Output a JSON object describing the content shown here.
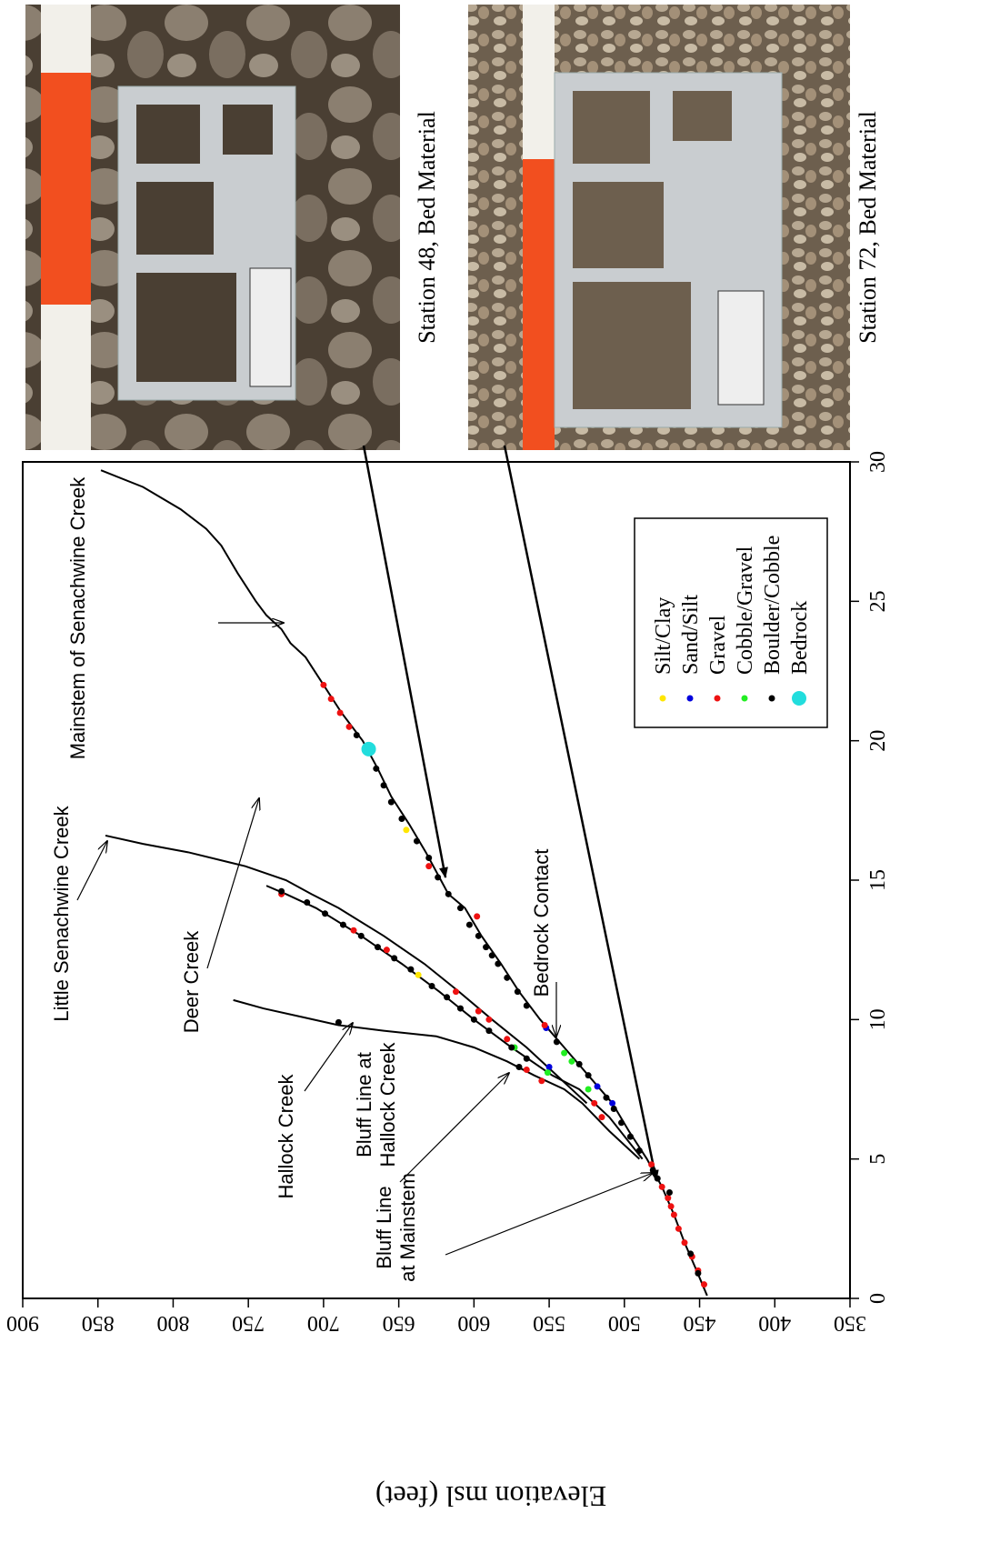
{
  "chart_data": {
    "type": "line",
    "y_label": "Elevation msl (feet)",
    "xlim": [
      0,
      30
    ],
    "ylim": [
      350,
      900
    ],
    "xticks": [
      0,
      5,
      10,
      15,
      20,
      25,
      30
    ],
    "yticks": [
      350,
      400,
      450,
      500,
      550,
      600,
      650,
      700,
      750,
      800,
      850,
      900
    ],
    "legend_position": "lower right",
    "series": [
      {
        "type": "line",
        "color": "#000000",
        "x": [
          0.1,
          1,
          2,
          3,
          4,
          4.5,
          5,
          6,
          7,
          8,
          9,
          10,
          11,
          12,
          13,
          14,
          14.5,
          15,
          16,
          17,
          18,
          19,
          20,
          21,
          22,
          23,
          23.5,
          24,
          24.5,
          25,
          26,
          27,
          27.6,
          28.3,
          29.1,
          29.7
        ],
        "values": [
          445,
          452,
          460,
          467,
          475,
          480,
          485,
          497,
          508,
          524,
          540,
          556,
          570,
          582,
          595,
          606,
          617,
          622,
          632,
          643,
          655,
          664,
          674,
          688,
          700,
          712,
          722,
          728,
          738,
          745,
          757,
          768,
          778,
          795,
          820,
          848
        ]
      },
      {
        "type": "line",
        "color": "#000000",
        "x": [
          7,
          8,
          9,
          10,
          11,
          12,
          13,
          14,
          14.5,
          15,
          15.5,
          16,
          16.3,
          16.6
        ],
        "values": [
          525,
          545,
          565,
          588,
          610,
          633,
          660,
          690,
          708,
          725,
          752,
          790,
          820,
          845
        ]
      },
      {
        "type": "line",
        "color": "#000000",
        "x": [
          5,
          6.5,
          7.5,
          8,
          9,
          10,
          11,
          12,
          13,
          14,
          14.5,
          14.8
        ],
        "values": [
          488,
          510,
          530,
          548,
          575,
          600,
          623,
          648,
          675,
          705,
          725,
          738
        ]
      },
      {
        "type": "line",
        "color": "#000000",
        "x": [
          5,
          6,
          7,
          7.5,
          8,
          8.5,
          9,
          9.4,
          9.6,
          9.8,
          10.1,
          10.4,
          10.7
        ],
        "values": [
          490,
          510,
          528,
          540,
          560,
          578,
          600,
          625,
          660,
          690,
          715,
          740,
          760
        ]
      },
      {
        "type": "scatter",
        "name": "Silt/Clay",
        "color": "#ffe600",
        "marker_size": 3.5,
        "x": [
          11.6,
          16.8
        ],
        "values": [
          637,
          645
        ]
      },
      {
        "type": "scatter",
        "name": "Sand/Silt",
        "color": "#0000dd",
        "marker_size": 3.5,
        "x": [
          7.0,
          7.6,
          8.3,
          9.7
        ],
        "values": [
          508,
          518,
          550,
          552
        ]
      },
      {
        "type": "scatter",
        "name": "Gravel",
        "color": "#ee1111",
        "marker_size": 3.5,
        "x": [
          0.5,
          1.0,
          1.5,
          2.0,
          2.5,
          3.0,
          3.3,
          3.6,
          4.0,
          4.8,
          6.5,
          7.0,
          7.8,
          8.2,
          9.3,
          9.8,
          10.0,
          10.3,
          11.0,
          12.5,
          13.2,
          13.7,
          14.5,
          15.5,
          20.5,
          21.0,
          21.5,
          22.0
        ],
        "values": [
          447,
          451,
          455,
          460,
          464,
          467,
          469,
          471,
          475,
          482,
          515,
          520,
          555,
          565,
          578,
          553,
          590,
          597,
          612,
          658,
          680,
          598,
          728,
          630,
          683,
          689,
          695,
          700
        ]
      },
      {
        "type": "scatter",
        "name": "Cobble/Gravel",
        "color": "#22ee22",
        "marker_size": 3.5,
        "x": [
          7.5,
          8.1,
          8.5,
          8.8,
          9.0
        ],
        "values": [
          524,
          551,
          535,
          540,
          573
        ]
      },
      {
        "type": "scatter",
        "name": "Boulder/Cobble",
        "color": "#000000",
        "marker_size": 3.5,
        "x": [
          0.9,
          1.6,
          3.8,
          4.3,
          4.6,
          5.3,
          5.8,
          6.3,
          6.8,
          7.2,
          8.0,
          8.4,
          9.2,
          10.5,
          11.0,
          11.5,
          12.0,
          12.3,
          12.6,
          13.0,
          13.4,
          14.0,
          14.5,
          15.1,
          15.8,
          16.4,
          17.2,
          17.8,
          18.4,
          19.0,
          20.2,
          8.6,
          9.0,
          9.6,
          10.0,
          10.4,
          10.8,
          11.2,
          11.8,
          12.2,
          12.6,
          13.0,
          13.4,
          13.8,
          14.2,
          14.6,
          9.9,
          8.3
        ],
        "values": [
          451,
          456,
          470,
          478,
          481,
          490,
          496,
          502,
          507,
          512,
          524,
          530,
          545,
          565,
          571,
          578,
          584,
          588,
          592,
          597,
          603,
          609,
          617,
          624,
          630,
          638,
          648,
          655,
          660,
          665,
          678,
          565,
          575,
          590,
          600,
          609,
          618,
          628,
          642,
          653,
          664,
          675,
          687,
          699,
          711,
          728,
          690,
          570
        ]
      },
      {
        "type": "scatter",
        "name": "Bedrock",
        "color": "#22dddd",
        "marker_size": 8,
        "x": [
          19.7
        ],
        "values": [
          670
        ]
      }
    ],
    "annotations": [
      {
        "lines": [
          "Mainstem of  Senachwine Creek"
        ]
      },
      {
        "lines": [
          "Little Senachwine Creek"
        ]
      },
      {
        "lines": [
          "Deer Creek"
        ]
      },
      {
        "lines": [
          "Hallock Creek"
        ]
      },
      {
        "lines": [
          "Bluff Line at",
          "Hallock Creek"
        ]
      },
      {
        "lines": [
          "Bluff Line",
          "at Mainstem"
        ]
      },
      {
        "lines": [
          "Bedrock Contact"
        ]
      }
    ]
  },
  "photos": [
    {
      "caption": "Station 48, Bed Material"
    },
    {
      "caption": "Station 72, Bed Material"
    }
  ]
}
